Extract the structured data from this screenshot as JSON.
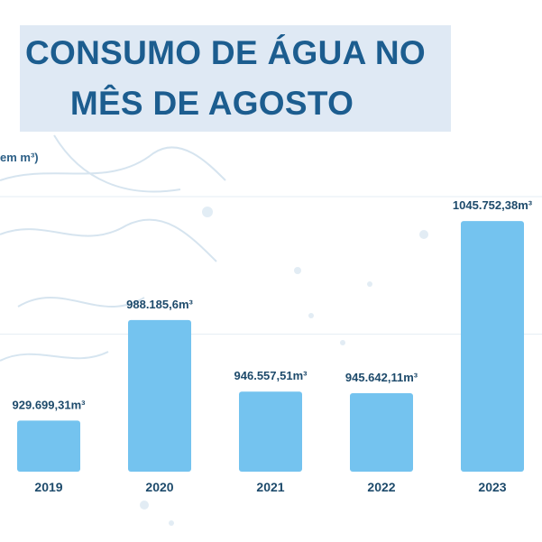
{
  "title_line1": "CONSUMO DE ÁGUA NO",
  "title_line2": "MÊS DE AGOSTO",
  "unit_label": "em m³)",
  "colors": {
    "bar": "#74c3ef",
    "title": "#1c5d8f",
    "title_background": "#dfe9f4",
    "text": "#1d4a6b"
  },
  "chart_data": {
    "type": "bar",
    "title": "CONSUMO DE ÁGUA NO MÊS DE AGOSTO",
    "ylabel": "em m³)",
    "categories": [
      "2019",
      "2020",
      "2021",
      "2022",
      "2023"
    ],
    "values": [
      929699.31,
      988185.6,
      946557.51,
      945642.11,
      1045752.38
    ],
    "value_labels": [
      "929.699,31m³",
      "988.185,6m³",
      "946.557,51m³",
      "945.642,11m³",
      "1045.752,38m³"
    ],
    "ylim": [
      900000,
      1060000
    ],
    "grid": true
  }
}
